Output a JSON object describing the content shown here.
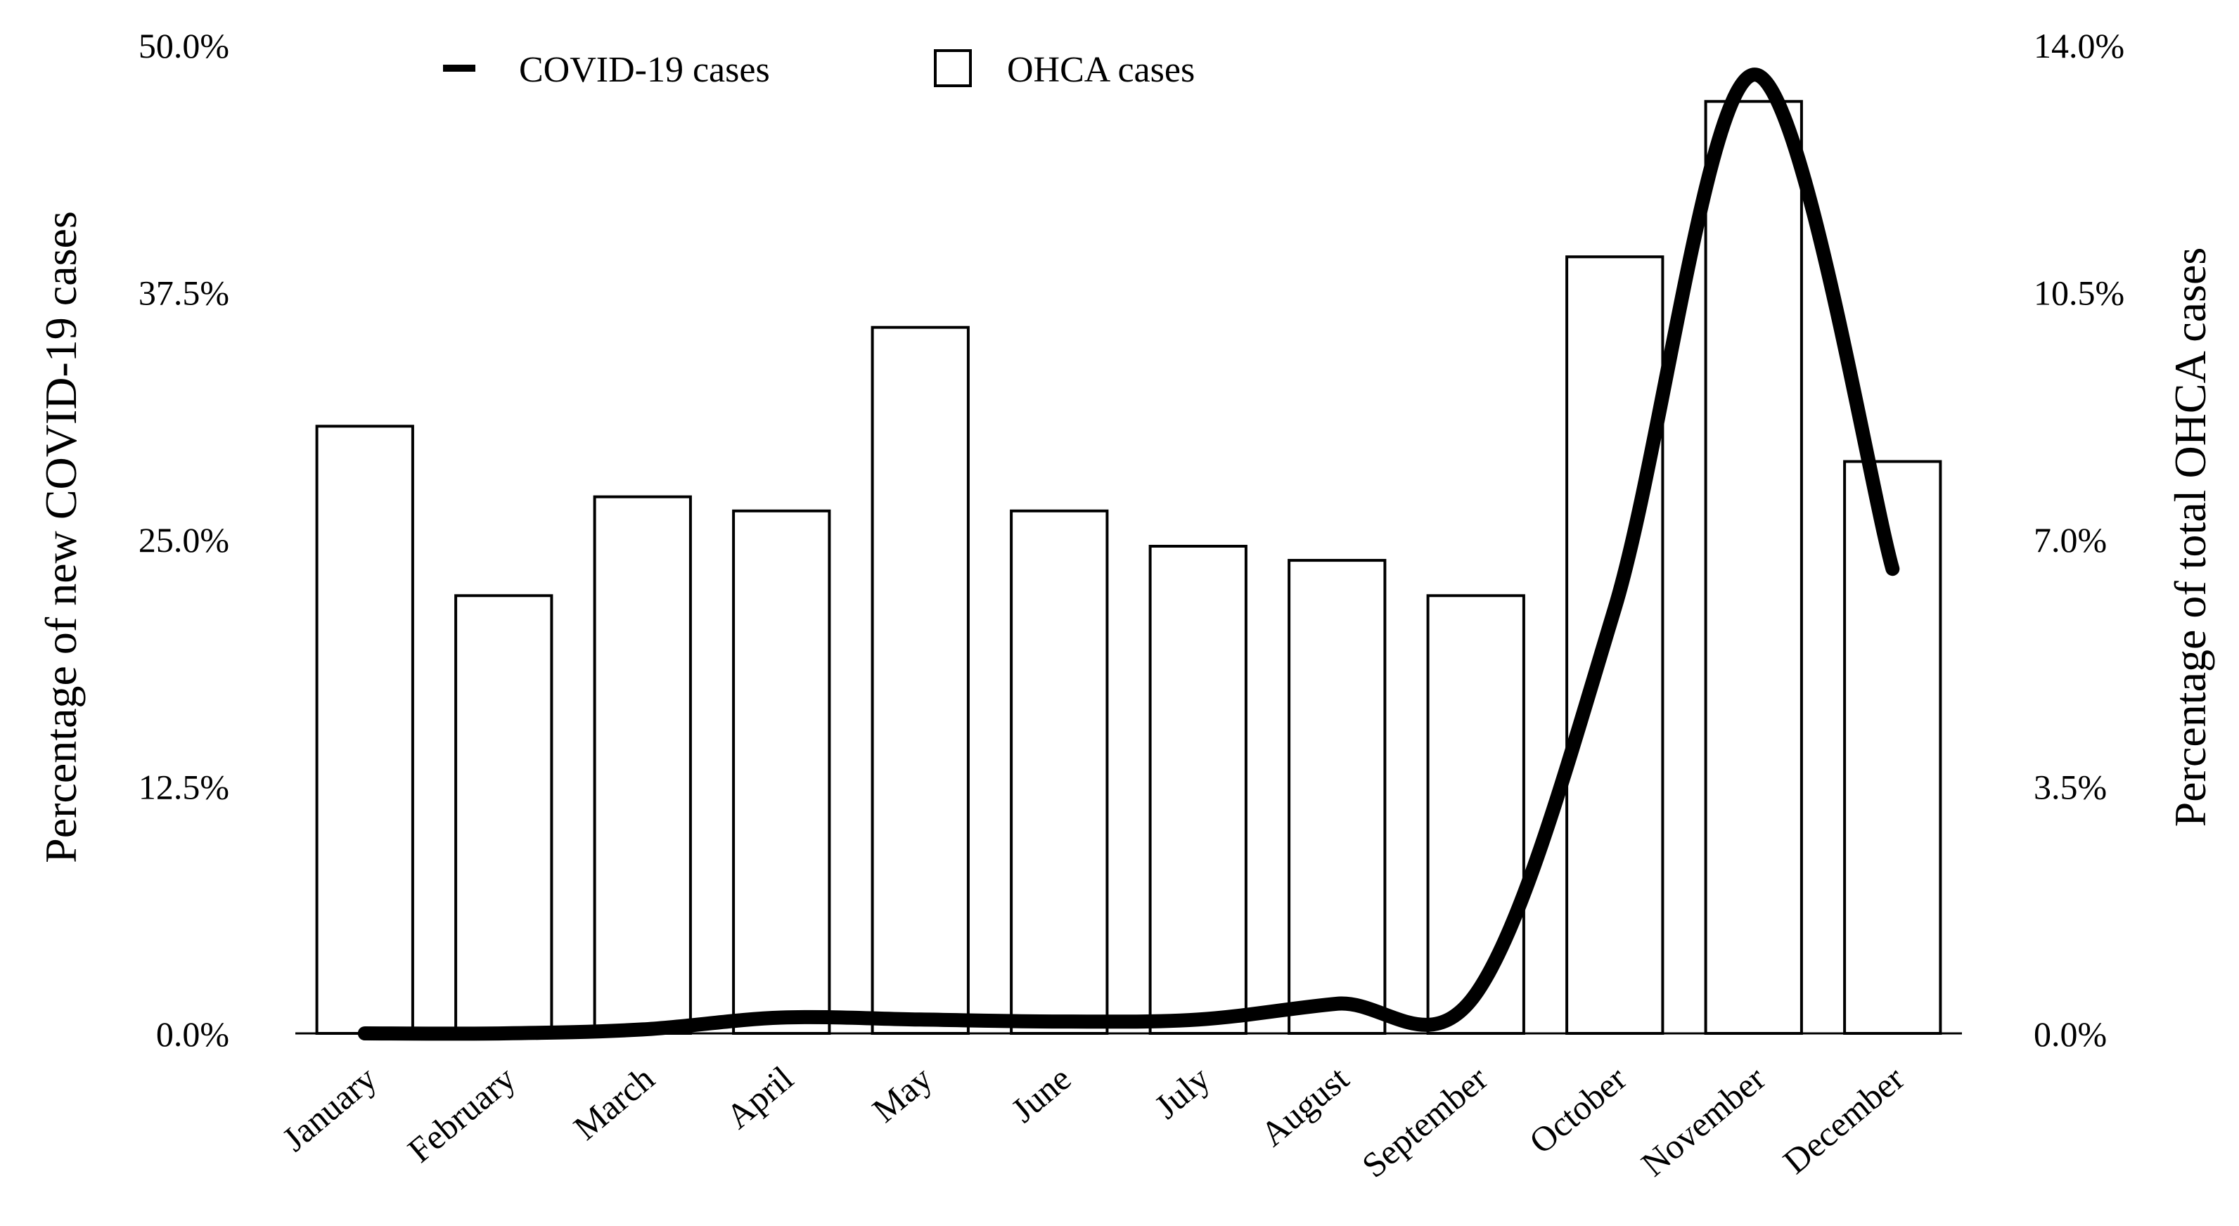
{
  "chart_data": {
    "type": "bar",
    "categories": [
      "January",
      "February",
      "March",
      "April",
      "May",
      "June",
      "July",
      "August",
      "September",
      "October",
      "November",
      "December"
    ],
    "series": [
      {
        "name": "OHCA cases",
        "type": "bar",
        "axis": "right",
        "values": [
          8.6,
          6.2,
          7.6,
          7.4,
          10.0,
          7.4,
          6.9,
          6.7,
          6.2,
          11.0,
          13.2,
          8.1
        ]
      },
      {
        "name": "COVID-19 cases",
        "type": "line",
        "axis": "left",
        "values": [
          0.0,
          0.0,
          0.2,
          0.8,
          0.7,
          0.6,
          0.7,
          1.5,
          2.0,
          21.5,
          48.5,
          23.5
        ]
      }
    ],
    "ylabel_left": "Percentage of new COVID-19 cases",
    "ylabel_right": "Percentage of total OHCA cases",
    "ylim_left": [
      0,
      50
    ],
    "ylim_right": [
      0,
      14
    ],
    "yticks_left": [
      "0.0%",
      "12.5%",
      "25.0%",
      "37.5%",
      "50.0%"
    ],
    "yticks_right": [
      "0.0%",
      "3.5%",
      "7.0%",
      "10.5%",
      "14.0%"
    ],
    "legend": {
      "position": "top-center",
      "entries": [
        {
          "label": "COVID-19 cases",
          "marker": "line"
        },
        {
          "label": "OHCA cases",
          "marker": "box"
        }
      ]
    },
    "grid": false
  }
}
